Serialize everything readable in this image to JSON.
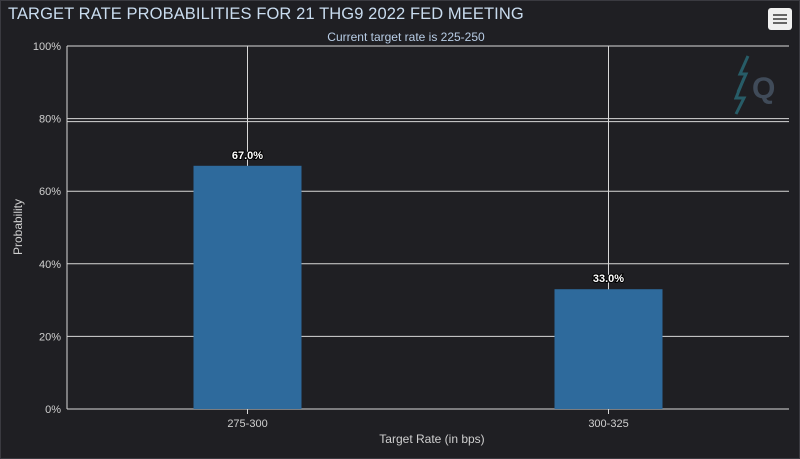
{
  "chart_data": {
    "type": "bar",
    "title": "TARGET RATE PROBABILITIES FOR 21 THG9 2022 FED MEETING",
    "subtitle": "Current target rate is 225-250",
    "xlabel": "Target Rate (in bps)",
    "ylabel": "Probability",
    "categories": [
      "275-300",
      "300-325"
    ],
    "values": [
      67.0,
      33.0
    ],
    "data_labels": [
      "67.0%",
      "33.0%"
    ],
    "ylim": [
      0,
      100
    ],
    "yticks": [
      0,
      20,
      40,
      60,
      80,
      100
    ],
    "ytick_labels": [
      "0%",
      "20%",
      "40%",
      "60%",
      "80%",
      "100%"
    ],
    "grid": true,
    "bar_color": "#2e6a9c"
  },
  "colors": {
    "background": "#1f1f23",
    "grid": "#d8d8d8",
    "title": "#c9dcef",
    "bar": "#2e6a9c"
  },
  "icons": {
    "menu": "hamburger-menu-icon",
    "watermark": "quikstrike-logo-icon"
  }
}
